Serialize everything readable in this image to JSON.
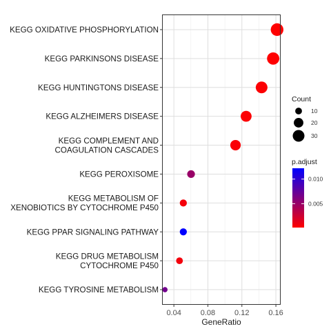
{
  "chart_data": {
    "type": "scatter",
    "xlabel": "GeneRatio",
    "xlim": [
      0.0269,
      0.1648
    ],
    "xticks": [
      0.04,
      0.08,
      0.12,
      0.16
    ],
    "xtick_labels": [
      "0.04",
      "0.08",
      "0.12",
      "0.16"
    ],
    "grid": true,
    "legend_position": "right",
    "size_legend": {
      "title": "Count",
      "values": [
        10,
        20,
        30
      ],
      "labels": [
        "10",
        "20",
        "30"
      ]
    },
    "color_legend": {
      "title": "p.adjust",
      "low_color": "#ff0000",
      "high_color": "#0000ff",
      "range": [
        0.00015,
        0.0122
      ],
      "ticks": [
        0.005,
        0.01
      ],
      "tick_labels": [
        "0.005",
        "0.010"
      ]
    },
    "points": [
      {
        "lines": [
          "KEGG OXIDATIVE PHOSPHORYLATION"
        ],
        "x": 0.1614,
        "count": 35,
        "p_adjust": 0.0002
      },
      {
        "lines": [
          "KEGG PARKINSONS DISEASE"
        ],
        "x": 0.1568,
        "count": 33,
        "p_adjust": 0.0002
      },
      {
        "lines": [
          "KEGG HUNTINGTONS DISEASE"
        ],
        "x": 0.1432,
        "count": 30,
        "p_adjust": 0.0003
      },
      {
        "lines": [
          "KEGG ALZHEIMERS DISEASE"
        ],
        "x": 0.125,
        "count": 26,
        "p_adjust": 0.0003
      },
      {
        "lines": [
          "KEGG COMPLEMENT AND",
          "COAGULATION CASCADES"
        ],
        "x": 0.1125,
        "count": 24,
        "p_adjust": 0.0004
      },
      {
        "lines": [
          "KEGG PEROXISOME"
        ],
        "x": 0.0602,
        "count": 13,
        "p_adjust": 0.005
      },
      {
        "lines": [
          "KEGG METABOLISM OF",
          "XENOBIOTICS BY CYTOCHROME P450"
        ],
        "x": 0.0511,
        "count": 11,
        "p_adjust": 0.0006
      },
      {
        "lines": [
          "KEGG PPAR SIGNALING PATHWAY"
        ],
        "x": 0.0511,
        "count": 11,
        "p_adjust": 0.0122
      },
      {
        "lines": [
          "KEGG DRUG METABOLISM",
          "CYTOCHROME P450"
        ],
        "x": 0.0466,
        "count": 10,
        "p_adjust": 0.0007
      },
      {
        "lines": [
          "KEGG TYROSINE METABOLISM"
        ],
        "x": 0.0295,
        "count": 6,
        "p_adjust": 0.0068
      }
    ]
  }
}
